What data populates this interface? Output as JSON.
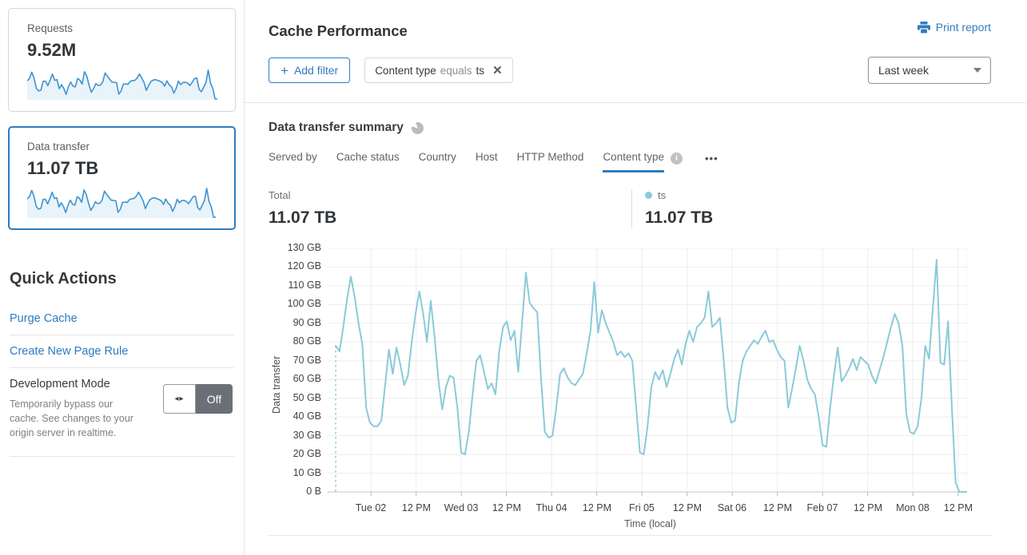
{
  "icons": {
    "plus": "+",
    "close": "✕",
    "more": "•••",
    "info": "i",
    "toggle_arrows": "◂▸"
  },
  "sidebar": {
    "cards": [
      {
        "label": "Requests",
        "value": "9.52M",
        "selected": false
      },
      {
        "label": "Data transfer",
        "value": "11.07 TB",
        "selected": true
      }
    ],
    "quick_actions": {
      "title": "Quick Actions",
      "links": [
        {
          "label": "Purge Cache"
        },
        {
          "label": "Create New Page Rule"
        }
      ],
      "dev_mode": {
        "title": "Development Mode",
        "description": "Temporarily bypass our cache. See changes to your origin server in realtime.",
        "toggle_state": "Off"
      }
    }
  },
  "header": {
    "title": "Cache Performance",
    "print_label": "Print report",
    "add_filter_label": "Add filter",
    "filter_chip": {
      "field": "Content type",
      "operator": "equals",
      "value": "ts"
    },
    "time_range": "Last week"
  },
  "summary": {
    "title": "Data transfer summary",
    "tabs": [
      {
        "label": "Served by",
        "active": false
      },
      {
        "label": "Cache status",
        "active": false
      },
      {
        "label": "Country",
        "active": false
      },
      {
        "label": "Host",
        "active": false
      },
      {
        "label": "HTTP Method",
        "active": false
      },
      {
        "label": "Content type",
        "active": true
      }
    ],
    "total": {
      "label": "Total",
      "value": "11.07 TB"
    },
    "legend": {
      "name": "ts",
      "value": "11.07 TB",
      "color": "#89cbd9"
    }
  },
  "chart_data": {
    "type": "line",
    "title": "Data transfer summary",
    "xlabel": "Time (local)",
    "ylabel": "Data transfer",
    "ylim": [
      0,
      130
    ],
    "y_unit": "GB",
    "grid": true,
    "legend_position": "top-right",
    "start_boundary_dashed_to_zero": true,
    "y_ticks": [
      "0 B",
      "10 GB",
      "20 GB",
      "30 GB",
      "40 GB",
      "50 GB",
      "60 GB",
      "70 GB",
      "80 GB",
      "90 GB",
      "100 GB",
      "110 GB",
      "120 GB",
      "130 GB"
    ],
    "x_ticks": [
      "Tue 02",
      "12 PM",
      "Wed 03",
      "12 PM",
      "Thu 04",
      "12 PM",
      "Fri 05",
      "12 PM",
      "Sat 06",
      "12 PM",
      "Feb 07",
      "12 PM",
      "Mon 08",
      "12 PM"
    ],
    "series": [
      {
        "name": "ts",
        "color": "#89cbd9",
        "unit": "GB",
        "values": [
          78,
          75,
          88,
          103,
          115,
          104,
          90,
          79,
          45,
          37,
          35,
          35,
          38,
          57,
          76,
          63,
          77,
          68,
          57,
          62,
          80,
          95,
          107,
          95,
          80,
          102,
          83,
          60,
          44,
          56,
          62,
          61,
          45,
          21,
          20,
          32,
          52,
          70,
          73,
          64,
          55,
          58,
          52,
          75,
          88,
          91,
          81,
          86,
          64,
          90,
          117,
          101,
          98,
          96,
          60,
          32,
          29,
          30,
          45,
          63,
          66,
          61,
          58,
          57,
          60,
          63,
          74,
          86,
          112,
          85,
          97,
          90,
          85,
          80,
          73,
          75,
          72,
          74,
          70,
          45,
          21,
          20,
          35,
          56,
          64,
          60,
          65,
          56,
          63,
          71,
          76,
          68,
          79,
          86,
          80,
          88,
          90,
          93,
          107,
          88,
          90,
          93,
          71,
          45,
          37,
          38,
          58,
          70,
          75,
          78,
          81,
          79,
          83,
          86,
          80,
          81,
          76,
          72,
          70,
          45,
          55,
          66,
          78,
          70,
          60,
          55,
          52,
          40,
          25,
          24,
          45,
          62,
          77,
          59,
          62,
          66,
          71,
          65,
          72,
          70,
          68,
          62,
          58,
          65,
          72,
          80,
          88,
          95,
          90,
          78,
          42,
          32,
          31,
          35,
          50,
          78,
          71,
          98,
          124,
          69,
          68,
          91,
          45,
          5,
          0,
          0,
          0
        ]
      }
    ]
  }
}
